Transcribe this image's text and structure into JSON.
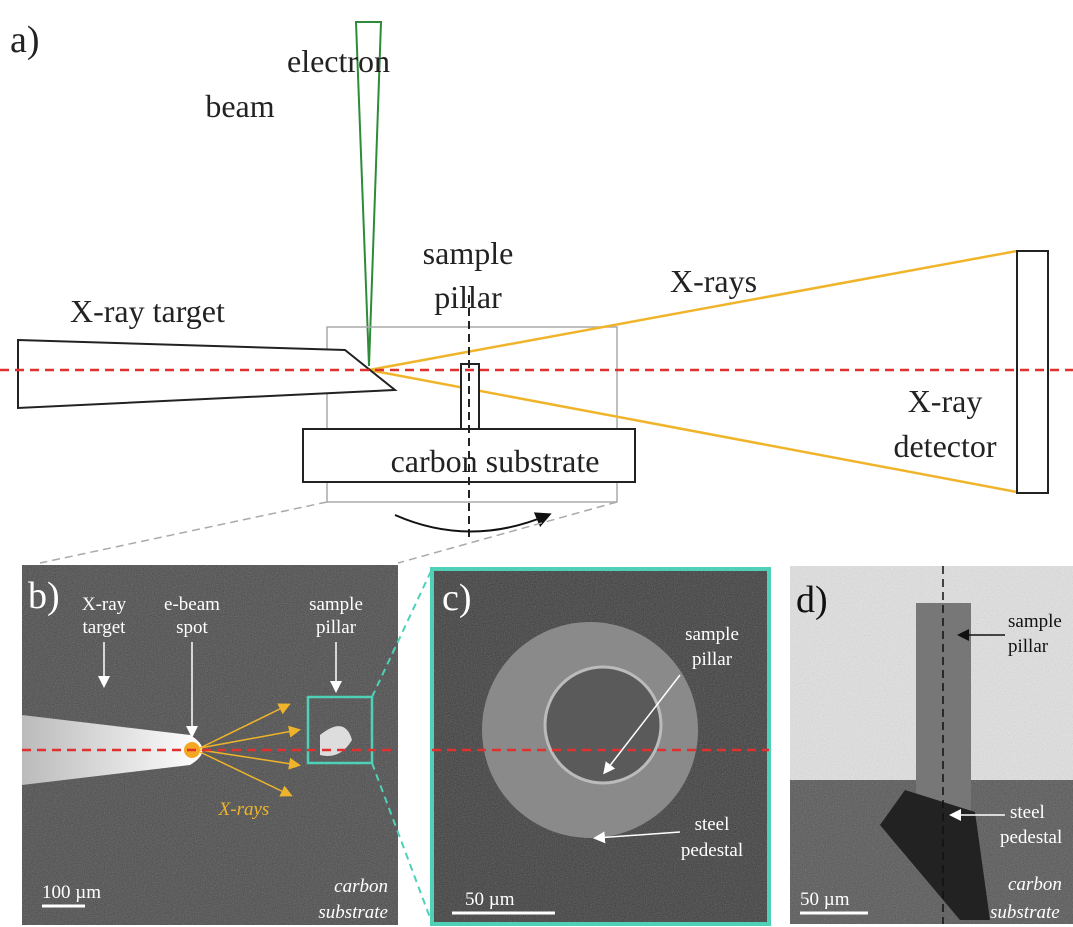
{
  "panel_a": {
    "label": "a)",
    "electron_beam": [
      "electron",
      "beam"
    ],
    "xray_target": "X-ray target",
    "sample_pillar": [
      "sample",
      "pillar"
    ],
    "xrays": "X-rays",
    "xray_detector": [
      "X-ray",
      "detector"
    ],
    "carbon_substrate": "carbon substrate"
  },
  "panel_b": {
    "label": "b)",
    "xray_target": [
      "X-ray",
      "target"
    ],
    "ebeam_spot": [
      "e-beam",
      "spot"
    ],
    "sample_pillar": [
      "sample",
      "pillar"
    ],
    "xrays": "X-rays",
    "scale": "100 µm",
    "carbon_substrate": [
      "carbon",
      "substrate"
    ]
  },
  "panel_c": {
    "label": "c)",
    "sample_pillar": [
      "sample",
      "pillar"
    ],
    "steel_pedestal": [
      "steel",
      "pedestal"
    ],
    "scale": "50 µm"
  },
  "panel_d": {
    "label": "d)",
    "sample_pillar": [
      "sample",
      "pillar"
    ],
    "steel_pedestal": [
      "steel",
      "pedestal"
    ],
    "scale": "50 µm",
    "carbon_substrate": [
      "carbon",
      "substrate"
    ]
  }
}
